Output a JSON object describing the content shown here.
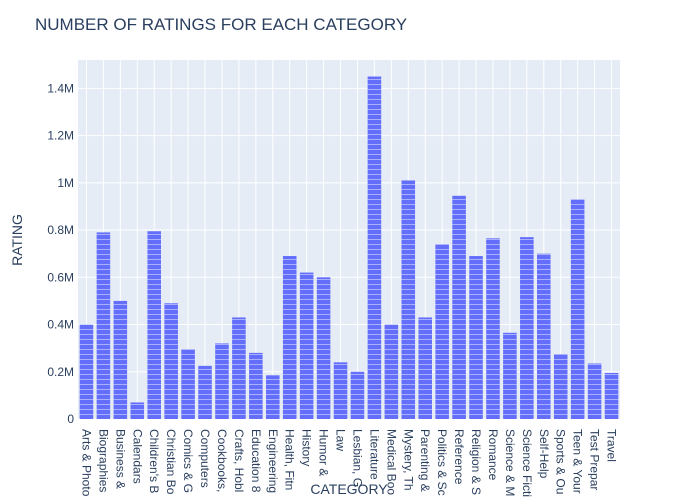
{
  "chart_data": {
    "type": "bar",
    "title": "NUMBER OF RATINGS FOR EACH CATEGORY",
    "x_label": "CATEGORY",
    "y_label": "RATING",
    "categories": [
      "Arts & Photo",
      "Biographies",
      "Business &",
      "Calendars",
      "Children's B",
      "Christian Bo",
      "Comics & G",
      "Computers",
      "Cookbooks,",
      "Crafts, Hobl",
      "Education 8",
      "Engineering",
      "Health, Fitn",
      "History",
      "Humor &",
      "Law",
      "Lesbian, G",
      "Literature",
      "Medical Boo",
      "Mystery, Th",
      "Parenting &",
      "Politics & Sc",
      "Reference",
      "Religion & S",
      "Romance",
      "Science & M",
      "Science Ficti",
      "Self-Help",
      "Sports & Ou",
      "Teen & Your",
      "Test Prepar",
      "Travel"
    ],
    "values": [
      400000,
      790000,
      500000,
      70000,
      795000,
      490000,
      295000,
      225000,
      320000,
      430000,
      280000,
      185000,
      690000,
      620000,
      600000,
      240000,
      200000,
      1450000,
      400000,
      1010000,
      430000,
      740000,
      945000,
      690000,
      765000,
      365000,
      770000,
      700000,
      275000,
      930000,
      235000,
      195000
    ],
    "color": "#636efa",
    "ylim": [
      0,
      1520000
    ],
    "yticks": [
      0,
      {
        "value": 200000,
        "label": "0.2M"
      },
      {
        "value": 400000,
        "label": "0.4M"
      },
      {
        "value": 600000,
        "label": "0.6M"
      },
      {
        "value": 800000,
        "label": "0.8M"
      },
      {
        "value": 1000000,
        "label": "1M"
      },
      {
        "value": 1200000,
        "label": "1.2M"
      },
      {
        "value": 1400000,
        "label": "1.4M"
      }
    ],
    "grid": true
  }
}
